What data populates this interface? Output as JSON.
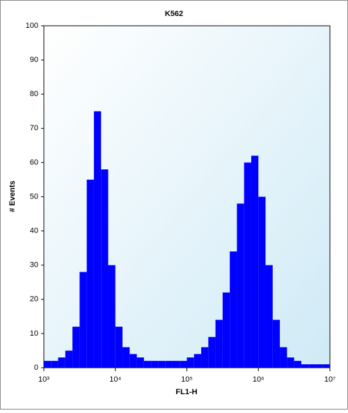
{
  "chart_data": {
    "type": "histogram",
    "title": "K562",
    "xlabel": "FL1-H",
    "ylabel": "# Events",
    "log_x": true,
    "color": "#0000ff",
    "bins": [
      1000,
      1259,
      1585,
      1995,
      2512,
      3162,
      3981,
      5012,
      6310,
      7943,
      10000,
      12589,
      15849,
      19953,
      25119,
      31623,
      39811,
      50119,
      63096,
      79433,
      100000,
      125893,
      158489,
      199526,
      251189,
      316228,
      398107,
      501187,
      630957,
      794328,
      1000000,
      1258925,
      1584893,
      1995262,
      2511886,
      3162278,
      3981072,
      5011872,
      6309573,
      7943282,
      10000000
    ],
    "counts": [
      2,
      2,
      3,
      5,
      12,
      28,
      55,
      75,
      58,
      30,
      12,
      6,
      4,
      3,
      2,
      2,
      2,
      2,
      2,
      2,
      3,
      4,
      6,
      9,
      14,
      22,
      34,
      48,
      60,
      62,
      50,
      30,
      14,
      6,
      3,
      2,
      1,
      1,
      1,
      1
    ],
    "xlim": [
      1000,
      10000000
    ],
    "xticks": [
      {
        "value": 1000,
        "label": "10³"
      },
      {
        "value": 10000,
        "label": "10⁴"
      },
      {
        "value": 100000,
        "label": "10⁵"
      },
      {
        "value": 1000000,
        "label": "10⁶"
      },
      {
        "value": 10000000,
        "label": "10⁷"
      }
    ],
    "ylim": [
      0,
      100
    ],
    "yticks": [
      0,
      10,
      20,
      30,
      40,
      50,
      60,
      70,
      80,
      90,
      100
    ]
  }
}
